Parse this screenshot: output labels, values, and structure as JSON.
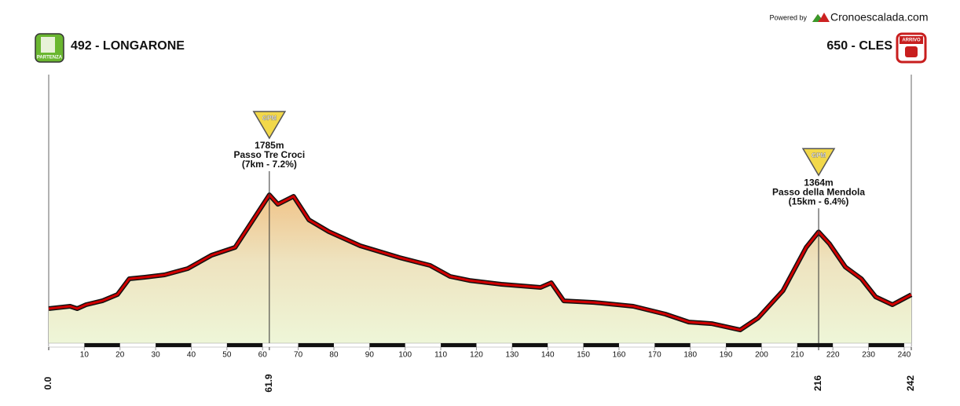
{
  "header": {
    "powered_by": "Powered by",
    "brand": "Cronoescalada.com",
    "start": {
      "badge": "PARTENZA",
      "label": "492 - LONGARONE"
    },
    "finish": {
      "badge": "ARRIVO",
      "label": "650 - CLES"
    }
  },
  "chart_data": {
    "type": "area",
    "x": [
      0,
      6,
      8,
      10.5,
      15,
      19.3,
      22.6,
      27,
      32.5,
      39,
      45.7,
      52.3,
      56.6,
      61.9,
      64.3,
      68.7,
      73,
      78.6,
      87.4,
      98.4,
      107,
      112.6,
      118,
      127,
      138,
      141,
      144.5,
      153,
      164,
      173,
      179.6,
      186,
      194,
      199,
      206,
      212.5,
      216,
      219,
      223.5,
      228,
      232,
      236.7,
      242
    ],
    "values": [
      492,
      519,
      492,
      537,
      581,
      653,
      831,
      849,
      876,
      947,
      1099,
      1188,
      1455,
      1785,
      1678,
      1768,
      1500,
      1366,
      1206,
      1072,
      983,
      858,
      813,
      769,
      733,
      786,
      581,
      563,
      519,
      430,
      340,
      322,
      251,
      385,
      697,
      1188,
      1364,
      1232,
      965,
      831,
      626,
      537,
      650
    ],
    "color": "#d00000",
    "xlim": [
      0,
      242
    ],
    "ylim": [
      100,
      3150
    ],
    "xticks": [
      10,
      20,
      30,
      40,
      50,
      60,
      70,
      80,
      90,
      100,
      110,
      120,
      130,
      140,
      150,
      160,
      170,
      180,
      190,
      200,
      210,
      220,
      230,
      240
    ],
    "km_marks": [
      {
        "value": 0,
        "label": "0.0"
      },
      61.9,
      216,
      242
    ],
    "annotations": [
      {
        "x": 61.9,
        "y": 1785,
        "badge": "GPM",
        "altitude": "1785m",
        "name": "Passo Tre Croci",
        "detail": "(7km - 7.2%)"
      },
      {
        "x": 216,
        "y": 1364,
        "badge": "GPM",
        "altitude": "1364m",
        "name": "Passo della Mendola",
        "detail": "(15km - 6.4%)"
      }
    ]
  }
}
